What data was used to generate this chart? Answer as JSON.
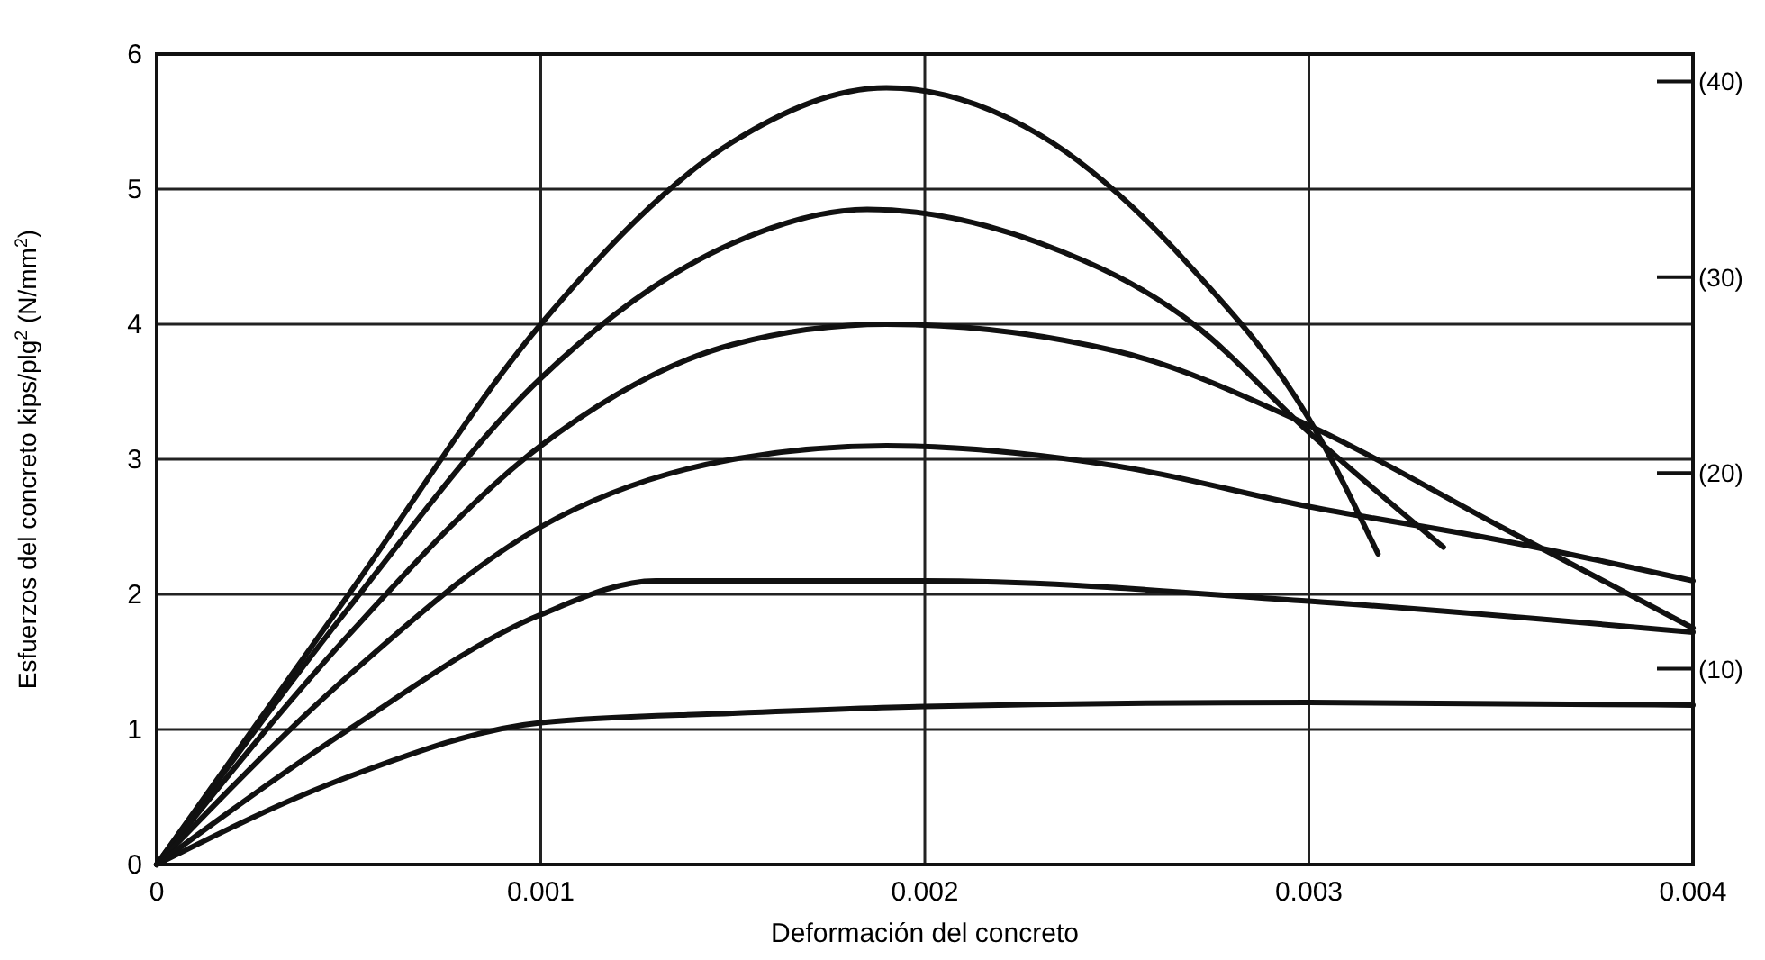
{
  "chart_data": {
    "type": "line",
    "xlabel": "Deformación del concreto",
    "ylabel": "Esfuerzos del concreto kips/plg$^{2}$ (N/mm$^{2}$)",
    "xlim": [
      0,
      0.004
    ],
    "xticks": [
      0,
      0.001,
      0.002,
      0.003,
      0.004
    ],
    "ylim": [
      0,
      6
    ],
    "yticks": [
      0,
      1,
      2,
      3,
      4,
      5,
      6
    ],
    "y2lim": [
      0,
      41.4
    ],
    "y2ticks": [
      {
        "value": 10,
        "label": "(10)"
      },
      {
        "value": 20,
        "label": "(20)"
      },
      {
        "value": 30,
        "label": "(30)"
      },
      {
        "value": 40,
        "label": "(40)"
      }
    ],
    "grid": true,
    "marker": "none",
    "line_style": "solid",
    "series": [
      {
        "color": "#111111",
        "x": [
          0,
          0.0005,
          0.001,
          0.0015,
          0.0019,
          0.0023,
          0.0027,
          0.003,
          0.00318
        ],
        "values": [
          0,
          2.0,
          4.0,
          5.35,
          5.75,
          5.4,
          4.4,
          3.3,
          2.3
        ]
      },
      {
        "color": "#111111",
        "x": [
          0,
          0.0005,
          0.001,
          0.0015,
          0.00185,
          0.0023,
          0.0027,
          0.003,
          0.00335
        ],
        "values": [
          0,
          1.9,
          3.6,
          4.6,
          4.85,
          4.6,
          4.0,
          3.2,
          2.35
        ]
      },
      {
        "color": "#111111",
        "x": [
          0,
          0.0005,
          0.001,
          0.0015,
          0.0019,
          0.0025,
          0.003,
          0.0035,
          0.004
        ],
        "values": [
          0,
          1.7,
          3.1,
          3.85,
          4.0,
          3.8,
          3.25,
          2.5,
          1.75
        ]
      },
      {
        "color": "#111111",
        "x": [
          0,
          0.0005,
          0.001,
          0.0015,
          0.0019,
          0.0025,
          0.003,
          0.0035,
          0.004
        ],
        "values": [
          0,
          1.4,
          2.5,
          3.0,
          3.1,
          2.95,
          2.65,
          2.4,
          2.1
        ]
      },
      {
        "color": "#111111",
        "x": [
          0,
          0.0005,
          0.001,
          0.0013,
          0.002,
          0.003,
          0.004
        ],
        "values": [
          0,
          1.0,
          1.85,
          2.1,
          2.1,
          1.95,
          1.72
        ]
      },
      {
        "color": "#111111",
        "x": [
          0,
          0.0005,
          0.001,
          0.0015,
          0.002,
          0.003,
          0.004
        ],
        "values": [
          0,
          0.65,
          1.05,
          1.12,
          1.17,
          1.2,
          1.18
        ]
      }
    ]
  }
}
